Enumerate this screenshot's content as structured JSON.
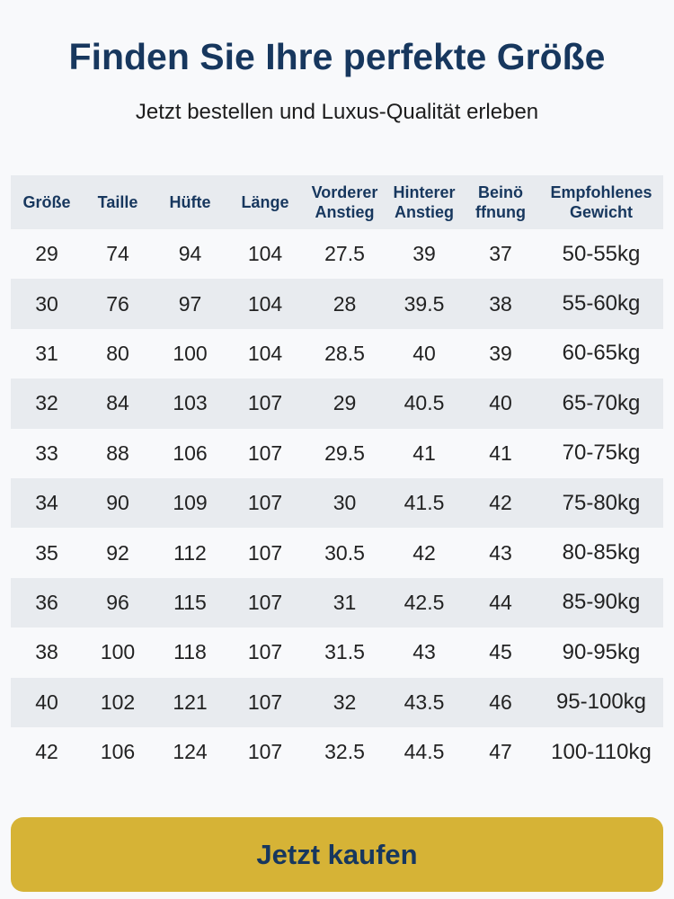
{
  "header": {
    "title": "Finden Sie Ihre perfekte Größe",
    "subtitle": "Jetzt bestellen und Luxus-Qualität erleben"
  },
  "table": {
    "headers": [
      [
        "Größe"
      ],
      [
        "Taille"
      ],
      [
        "Hüfte"
      ],
      [
        "Länge"
      ],
      [
        "Vorderer",
        "Anstieg"
      ],
      [
        "Hinterer",
        "Anstieg"
      ],
      [
        "Beinö",
        "ffnung"
      ],
      [
        "Empfohlenes",
        "Gewicht"
      ]
    ],
    "rows": [
      [
        "29",
        "74",
        "94",
        "104",
        "27.5",
        "39",
        "37",
        "50-55kg"
      ],
      [
        "30",
        "76",
        "97",
        "104",
        "28",
        "39.5",
        "38",
        "55-60kg"
      ],
      [
        "31",
        "80",
        "100",
        "104",
        "28.5",
        "40",
        "39",
        "60-65kg"
      ],
      [
        "32",
        "84",
        "103",
        "107",
        "29",
        "40.5",
        "40",
        "65-70kg"
      ],
      [
        "33",
        "88",
        "106",
        "107",
        "29.5",
        "41",
        "41",
        "70-75kg"
      ],
      [
        "34",
        "90",
        "109",
        "107",
        "30",
        "41.5",
        "42",
        "75-80kg"
      ],
      [
        "35",
        "92",
        "112",
        "107",
        "30.5",
        "42",
        "43",
        "80-85kg"
      ],
      [
        "36",
        "96",
        "115",
        "107",
        "31",
        "42.5",
        "44",
        "85-90kg"
      ],
      [
        "38",
        "100",
        "118",
        "107",
        "31.5",
        "43",
        "45",
        "90-95kg"
      ],
      [
        "40",
        "102",
        "121",
        "107",
        "32",
        "43.5",
        "46",
        "95-100kg"
      ],
      [
        "42",
        "106",
        "124",
        "107",
        "32.5",
        "44.5",
        "47",
        "100-110kg"
      ]
    ]
  },
  "button": {
    "label": "Jetzt kaufen"
  }
}
